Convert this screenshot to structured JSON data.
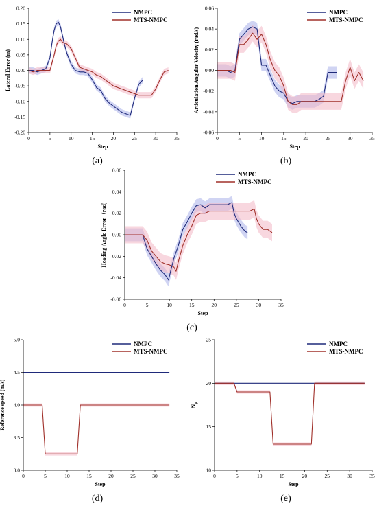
{
  "colors": {
    "nmpc": "#1f2a7a",
    "mts": "#a0302a",
    "nmpc_band": "#aab0ea",
    "mts_band": "#f2b6c4"
  },
  "chart_data": [
    {
      "id": "a",
      "type": "line",
      "panel_label": "(a)",
      "xlabel": "Step",
      "ylabel": "Lateral Error (m)",
      "xlim": [
        0,
        35
      ],
      "ylim": [
        -0.2,
        0.2
      ],
      "xticks": [
        0,
        5,
        10,
        15,
        20,
        25,
        30,
        35
      ],
      "yticks": [
        -0.2,
        -0.15,
        -0.1,
        -0.05,
        0.0,
        0.05,
        0.1,
        0.15,
        0.2
      ],
      "ytick_labels": [
        "-0.20",
        "-0.15",
        "-0.10",
        "-0.05",
        "0.00",
        "0.05",
        "0.10",
        "0.15",
        "0.20"
      ],
      "grid": false,
      "legend_position": "top-right",
      "series": [
        {
          "name": "NMPC",
          "band": 0.01,
          "x": [
            0,
            1,
            2,
            3,
            4,
            5,
            5.5,
            6,
            6.5,
            7,
            7.5,
            8,
            8.5,
            9,
            10,
            11,
            12,
            13,
            14,
            15,
            16,
            17,
            18,
            19,
            20,
            21,
            22,
            23,
            24,
            25,
            26,
            27
          ],
          "y": [
            0.0,
            0.0,
            -0.005,
            0.0,
            0.005,
            0.04,
            0.09,
            0.13,
            0.15,
            0.155,
            0.14,
            0.11,
            0.08,
            0.055,
            0.02,
            0.0,
            -0.005,
            -0.005,
            -0.01,
            -0.03,
            -0.055,
            -0.065,
            -0.09,
            -0.105,
            -0.115,
            -0.125,
            -0.135,
            -0.14,
            -0.145,
            -0.09,
            -0.045,
            -0.03
          ]
        },
        {
          "name": "MTS-NMPC",
          "band": 0.01,
          "x": [
            0,
            1,
            2,
            3,
            4,
            5,
            5.5,
            6,
            6.5,
            7,
            7.5,
            8,
            9,
            10,
            11,
            12,
            13,
            14,
            15,
            16,
            17,
            18,
            19,
            20,
            21,
            22,
            23,
            24,
            25,
            26,
            27,
            28,
            29,
            30,
            31,
            32,
            33
          ],
          "y": [
            0.0,
            -0.005,
            0.0,
            0.0,
            0.0,
            0.0,
            0.025,
            0.05,
            0.08,
            0.095,
            0.1,
            0.09,
            0.085,
            0.07,
            0.04,
            0.01,
            0.005,
            0.0,
            -0.005,
            -0.015,
            -0.02,
            -0.03,
            -0.04,
            -0.05,
            -0.055,
            -0.06,
            -0.065,
            -0.07,
            -0.075,
            -0.08,
            -0.08,
            -0.08,
            -0.08,
            -0.06,
            -0.03,
            -0.005,
            0.0
          ]
        }
      ]
    },
    {
      "id": "b",
      "type": "line",
      "panel_label": "(b)",
      "xlabel": "Step",
      "ylabel": "Articulation Angular Velocity (rad/s)",
      "xlim": [
        0,
        35
      ],
      "ylim": [
        -0.06,
        0.06
      ],
      "xticks": [
        0,
        5,
        10,
        15,
        20,
        25,
        30,
        35
      ],
      "yticks": [
        -0.06,
        -0.04,
        -0.02,
        0.0,
        0.02,
        0.04,
        0.06
      ],
      "ytick_labels": [
        "-0.06",
        "-0.04",
        "-0.02",
        "0.00",
        "0.02",
        "0.04",
        "0.06"
      ],
      "grid": false,
      "legend_position": "top-right",
      "series": [
        {
          "name": "NMPC",
          "band": 0.006,
          "x": [
            0,
            1,
            2,
            3,
            4,
            5,
            6,
            7,
            8,
            9,
            10,
            11,
            12,
            13,
            14,
            15,
            16,
            17,
            18,
            19,
            20,
            21,
            22,
            23,
            24,
            25,
            26,
            27
          ],
          "y": [
            0.0,
            0.0,
            0.0,
            -0.002,
            0.0,
            0.03,
            0.035,
            0.04,
            0.042,
            0.04,
            0.005,
            0.005,
            -0.005,
            -0.015,
            -0.02,
            -0.022,
            -0.03,
            -0.032,
            -0.03,
            -0.03,
            -0.03,
            -0.03,
            -0.03,
            -0.028,
            -0.025,
            -0.002,
            -0.002,
            -0.002
          ]
        },
        {
          "name": "MTS-NMPC",
          "band": 0.008,
          "x": [
            0,
            1,
            2,
            3,
            4,
            5,
            6,
            7,
            8,
            9,
            10,
            11,
            12,
            13,
            14,
            15,
            16,
            17,
            18,
            19,
            20,
            21,
            22,
            23,
            24,
            25,
            26,
            27,
            28,
            29,
            30,
            31,
            32,
            33
          ],
          "y": [
            0.0,
            0.0,
            0.0,
            0.0,
            -0.002,
            0.025,
            0.025,
            0.03,
            0.036,
            0.03,
            0.035,
            0.025,
            0.01,
            0.0,
            -0.005,
            -0.015,
            -0.03,
            -0.033,
            -0.033,
            -0.03,
            -0.03,
            -0.03,
            -0.03,
            -0.03,
            -0.03,
            -0.03,
            -0.03,
            -0.03,
            -0.03,
            -0.01,
            0.003,
            -0.01,
            -0.002,
            -0.01
          ]
        }
      ]
    },
    {
      "id": "c",
      "type": "line",
      "panel_label": "(c)",
      "xlabel": "Step",
      "ylabel": "Heading Angle Error（rad)",
      "xlim": [
        0,
        35
      ],
      "ylim": [
        -0.06,
        0.06
      ],
      "xticks": [
        0,
        5,
        10,
        15,
        20,
        25,
        30,
        35
      ],
      "yticks": [
        -0.06,
        -0.04,
        -0.02,
        0.0,
        0.02,
        0.04,
        0.06
      ],
      "ytick_labels": [
        "-0.06",
        "-0.04",
        "-0.02",
        "0.00",
        "0.02",
        "0.04",
        "0.06"
      ],
      "grid": false,
      "legend_position": "top-right",
      "series": [
        {
          "name": "NMPC",
          "band": 0.006,
          "x": [
            0,
            1,
            2,
            3,
            4,
            5,
            6,
            7,
            8,
            9,
            9.8,
            10.5,
            11,
            12,
            13,
            14,
            15,
            16,
            17,
            18,
            19,
            20,
            21,
            22,
            23,
            24,
            24.5,
            25,
            26,
            27,
            27.5
          ],
          "y": [
            0.0,
            0.0,
            0.0,
            0.0,
            0.0,
            -0.013,
            -0.02,
            -0.027,
            -0.033,
            -0.037,
            -0.042,
            -0.03,
            -0.022,
            -0.01,
            0.005,
            0.012,
            0.02,
            0.027,
            0.028,
            0.025,
            0.028,
            0.028,
            0.028,
            0.028,
            0.028,
            0.03,
            0.02,
            0.015,
            0.008,
            0.003,
            0.002
          ]
        },
        {
          "name": "MTS-NMPC",
          "band": 0.008,
          "x": [
            0,
            1,
            2,
            3,
            4,
            5,
            6,
            7,
            8,
            9,
            10,
            11,
            11.5,
            12,
            13,
            14,
            15,
            16,
            17,
            18,
            19,
            20,
            21,
            22,
            23,
            24,
            25,
            26,
            27,
            28,
            29,
            29.5,
            30,
            31,
            32,
            33
          ],
          "y": [
            0.0,
            0.0,
            0.0,
            0.0,
            0.0,
            -0.005,
            -0.015,
            -0.02,
            -0.025,
            -0.027,
            -0.028,
            -0.03,
            -0.034,
            -0.025,
            -0.01,
            0.0,
            0.008,
            0.018,
            0.02,
            0.02,
            0.022,
            0.022,
            0.022,
            0.022,
            0.022,
            0.022,
            0.022,
            0.022,
            0.022,
            0.022,
            0.024,
            0.015,
            0.01,
            0.005,
            0.005,
            0.002
          ]
        }
      ]
    },
    {
      "id": "d",
      "type": "line",
      "panel_label": "(d)",
      "xlabel": "Step",
      "ylabel": "Reference speed (m/s)",
      "xlim": [
        0,
        35
      ],
      "ylim": [
        3.0,
        5.0
      ],
      "xticks": [
        0,
        5,
        10,
        15,
        20,
        25,
        30,
        35
      ],
      "yticks": [
        3.0,
        3.5,
        4.0,
        4.5,
        5.0
      ],
      "ytick_labels": [
        "3.0",
        "3.5",
        "4.0",
        "4.5",
        "5.0"
      ],
      "grid": false,
      "legend_position": "top-right",
      "series": [
        {
          "name": "NMPC",
          "band": 0,
          "x": [
            0,
            33.3
          ],
          "y": [
            4.5,
            4.5
          ]
        },
        {
          "name": "MTS-NMPC",
          "band": 0.025,
          "x": [
            0,
            4.3,
            5.0,
            12.3,
            13.0,
            33.3
          ],
          "y": [
            4.0,
            4.0,
            3.25,
            3.25,
            4.0,
            4.0
          ]
        }
      ]
    },
    {
      "id": "e",
      "type": "line",
      "panel_label": "(e)",
      "xlabel": "Step",
      "ylabel": "Np",
      "xlim": [
        0,
        35
      ],
      "ylim": [
        10,
        25
      ],
      "xticks": [
        0,
        5,
        10,
        15,
        20,
        25,
        30,
        35
      ],
      "yticks": [
        10,
        15,
        20,
        25
      ],
      "ytick_labels": [
        "10",
        "15",
        "20",
        "25"
      ],
      "grid": false,
      "legend_position": "top-right",
      "series": [
        {
          "name": "NMPC",
          "band": 0,
          "x": [
            0,
            33.3
          ],
          "y": [
            20,
            20
          ]
        },
        {
          "name": "MTS-NMPC",
          "band": 0.2,
          "x": [
            0,
            4.3,
            5.0,
            12.3,
            13.0,
            21.5,
            22.2,
            33.3
          ],
          "y": [
            20,
            20,
            19,
            19,
            13,
            13,
            20,
            20
          ]
        }
      ]
    }
  ]
}
